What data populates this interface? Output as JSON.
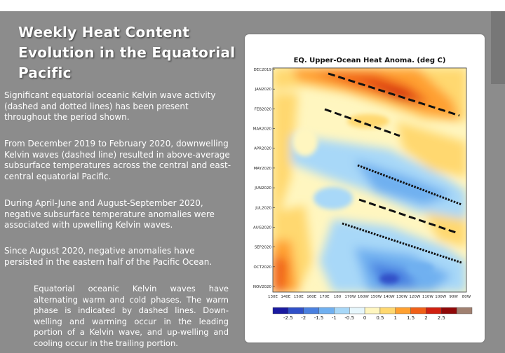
{
  "slide": {
    "title": "Weekly Heat Content Evolution in the Equatorial Pacific",
    "paragraphs": [
      "Significant equatorial oceanic Kelvin wave activity (dashed and dotted lines) has been present throughout the period shown.",
      "From December 2019 to February 2020, downwelling Kelvin waves (dashed line) resulted in above-average subsurface temperatures across the central and east-central equatorial Pacific.",
      "During April-June and August-September 2020, negative subsurface temperature anomalies were associated with upwelling Kelvin waves.",
      "Since August 2020, negative anomalies have persisted in the eastern half of the Pacific Ocean."
    ],
    "note": "Equatorial oceanic Kelvin waves have alternating warm and cold phases. The warm phase is indicated by dashed lines. Down-welling and warming occur in the leading portion of a Kelvin wave, and up-welling and cooling occur in the trailing portion."
  },
  "figure": {
    "title": "EQ. Upper-Ocean Heat Anoma. (deg C)",
    "y_labels": [
      "DEC2019",
      "JAN2020",
      "FEB2020",
      "MAR2020",
      "APR2020",
      "MAY2020",
      "JUN2020",
      "JUL2020",
      "AUG2020",
      "SEP2020",
      "OCT2020",
      "NOV2020"
    ],
    "x_labels": [
      "130E",
      "140E",
      "150E",
      "160E",
      "170E",
      "180",
      "170W",
      "160W",
      "150W",
      "140W",
      "130W",
      "120W",
      "110W",
      "100W",
      "90W",
      "80W"
    ],
    "colorbar_labels": [
      "-2.5",
      "-2",
      "-1.5",
      "-1",
      "-0.5",
      "0",
      "0.5",
      "1",
      "1.5",
      "2",
      "2.5"
    ],
    "colorbar_colors": [
      "#1a1aa0",
      "#3050c8",
      "#4a80e0",
      "#70b0f0",
      "#a8d8f8",
      "#e6f6fc",
      "#fff6c0",
      "#ffd870",
      "#ffa030",
      "#f06018",
      "#d02010",
      "#900808",
      "#a08070"
    ],
    "line_styles": [
      "dashed",
      "dotted"
    ],
    "colors": {
      "warm_light": "#fff6c0",
      "warm_mid": "#ffd870",
      "warm_strong": "#ffa030",
      "cool_light": "#a8d8f8",
      "cool_mid": "#70b0f0",
      "cool_strong": "#3050c8"
    }
  }
}
